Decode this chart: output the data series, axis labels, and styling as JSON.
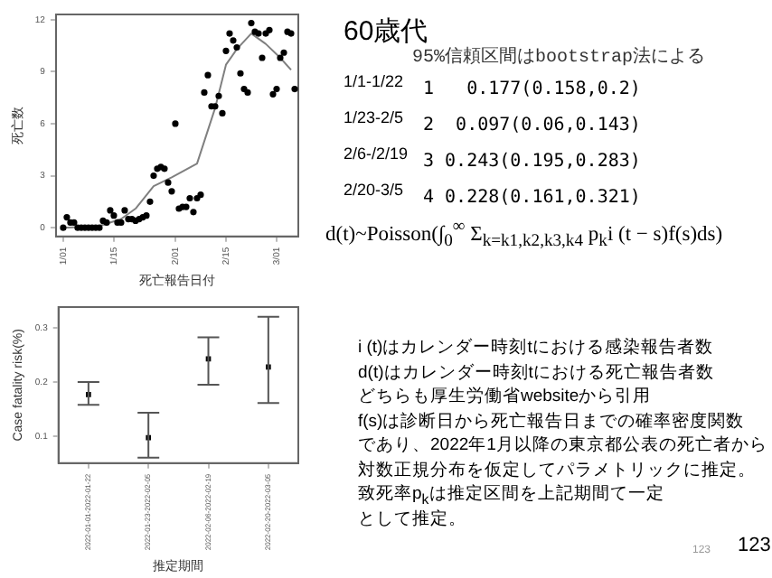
{
  "chart_data": [
    {
      "type": "scatter",
      "xlabel": "死亡報告日付",
      "ylabel": "死亡数",
      "marker": "circle",
      "grid": false,
      "legend": false,
      "xlim": [
        "2021-12-30",
        "2022-03-07"
      ],
      "xticks": [
        {
          "value": "2022-01-01",
          "label": "1/01"
        },
        {
          "value": "2022-01-15",
          "label": "1/15"
        },
        {
          "value": "2022-02-01",
          "label": "2/01"
        },
        {
          "value": "2022-02-15",
          "label": "2/15"
        },
        {
          "value": "2022-03-01",
          "label": "3/01"
        }
      ],
      "ylim": [
        -0.5,
        12.3
      ],
      "yticks": [
        0,
        3,
        6,
        9,
        12
      ],
      "series": [
        {
          "type": "scatter",
          "color": "#000000",
          "x": [
            "2022-01-01",
            "2022-01-02",
            "2022-01-03",
            "2022-01-04",
            "2022-01-05",
            "2022-01-06",
            "2022-01-07",
            "2022-01-08",
            "2022-01-09",
            "2022-01-10",
            "2022-01-11",
            "2022-01-12",
            "2022-01-13",
            "2022-01-14",
            "2022-01-15",
            "2022-01-16",
            "2022-01-17",
            "2022-01-18",
            "2022-01-19",
            "2022-01-20",
            "2022-01-21",
            "2022-01-22",
            "2022-01-23",
            "2022-01-24",
            "2022-01-25",
            "2022-01-26",
            "2022-01-27",
            "2022-01-28",
            "2022-01-29",
            "2022-01-30",
            "2022-01-31",
            "2022-02-01",
            "2022-02-02",
            "2022-02-03",
            "2022-02-04",
            "2022-02-05",
            "2022-02-06",
            "2022-02-07",
            "2022-02-08",
            "2022-02-09",
            "2022-02-10",
            "2022-02-11",
            "2022-02-12",
            "2022-02-13",
            "2022-02-14",
            "2022-02-15",
            "2022-02-16",
            "2022-02-17",
            "2022-02-18",
            "2022-02-19",
            "2022-02-20",
            "2022-02-21",
            "2022-02-22",
            "2022-02-23",
            "2022-02-24",
            "2022-02-25",
            "2022-02-26",
            "2022-02-27",
            "2022-02-28",
            "2022-03-01",
            "2022-03-02",
            "2022-03-03",
            "2022-03-04",
            "2022-03-05",
            "2022-03-06"
          ],
          "values": [
            0,
            0.6,
            0.3,
            0.3,
            0,
            0,
            0,
            0,
            0,
            0,
            0,
            0.4,
            0.3,
            1.0,
            0.7,
            0.3,
            0.3,
            1.0,
            0.5,
            0.5,
            0.4,
            0.5,
            0.6,
            0.7,
            1.5,
            3.0,
            3.4,
            3.5,
            3.4,
            2.6,
            2.1,
            6.0,
            1.1,
            1.2,
            1.2,
            1.7,
            0.9,
            1.7,
            1.9,
            7.8,
            8.8,
            7.0,
            7.0,
            7.6,
            6.6,
            10.2,
            11.2,
            10.8,
            10.4,
            8.9,
            8.0,
            7.8,
            11.8,
            11.3,
            11.2,
            9.8,
            11.2,
            11.4,
            7.7,
            8.0,
            9.8,
            10.1,
            11.3,
            11.2,
            8.0
          ]
        },
        {
          "type": "line",
          "color": "#808080",
          "marker": "none",
          "x": [
            "2022-01-01",
            "2022-01-11",
            "2022-01-17",
            "2022-01-21",
            "2022-01-26",
            "2022-01-31",
            "2022-02-07",
            "2022-02-12",
            "2022-02-15",
            "2022-02-18",
            "2022-02-22",
            "2022-02-26",
            "2022-03-02",
            "2022-03-05"
          ],
          "values": [
            0,
            0.1,
            0.5,
            1.1,
            2.4,
            2.9,
            3.7,
            6.9,
            9.4,
            10.3,
            11.2,
            10.6,
            9.8,
            9.1
          ]
        }
      ]
    },
    {
      "type": "scatter",
      "xlabel": "推定期間",
      "ylabel": "Case fatality risk(%)",
      "marker": "square",
      "grid": false,
      "legend": false,
      "categories": [
        "2022-01-01-2022-01-22",
        "2022-01-23-2022-02-05",
        "2022-02-06-2022-02-19",
        "2022-02-20-2022-03-05"
      ],
      "ylim": [
        0.05,
        0.339
      ],
      "yticks": [
        0.1,
        0.2,
        0.3
      ],
      "series": [
        {
          "color": "#000000",
          "values": [
            0.177,
            0.097,
            0.243,
            0.228
          ],
          "errors": [
            [
              0.158,
              0.2
            ],
            [
              0.06,
              0.143
            ],
            [
              0.195,
              0.283
            ],
            [
              0.161,
              0.321
            ]
          ]
        }
      ]
    },
    {
      "type": "other",
      "title": "60歳代",
      "subtitle": "95%信頼区間はbootstrap法による",
      "annotations": [
        "1/1-1/22",
        "1/23-2/5",
        "2/6-/2/19",
        "2/20-3/5",
        "1   0.177(0.158,0.2)",
        "2  0.097(0.06,0.143)",
        "3 0.243(0.195,0.283)",
        "4 0.228(0.161,0.321)",
        "d(t)~Poisson(∫$_{0}$$^{∞}$ Σ$_{k=k1,k2,k3,k4}$ p$_{k}$i (t − s)f(s)ds)",
        "i (t)はカレンダー時刻tにおける感染報告者数",
        "d(t)はカレンダー時刻tにおける死亡報告者数",
        "どちらも厚生労働省websiteから引用",
        " f(s)は診断日から死亡報告日までの確率密度関数",
        "であり、2022年1月以降の東京都公表の死亡者から",
        "対数正規分布を仮定してパラメトリックに推定。",
        "致死率p$_{k}$は推定区間を上記期間て一定",
        "として推定。",
        "123",
        "123"
      ]
    }
  ]
}
